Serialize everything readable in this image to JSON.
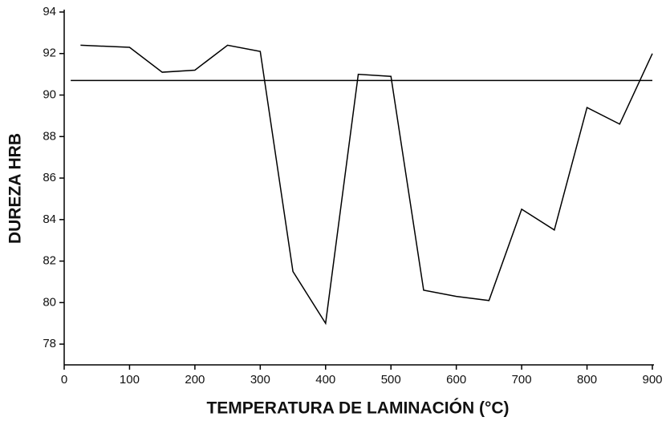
{
  "chart_data": {
    "type": "line",
    "x_label": "TEMPERATURA DE LAMINACIÓN (°C)",
    "y_label": "DUREZA HRB",
    "x": [
      25,
      100,
      150,
      200,
      250,
      300,
      350,
      400,
      450,
      500,
      550,
      600,
      650,
      700,
      750,
      800,
      850,
      900
    ],
    "values": [
      92.4,
      92.3,
      91.1,
      91.2,
      92.4,
      92.1,
      81.5,
      79.0,
      91.0,
      90.9,
      80.6,
      80.3,
      80.1,
      84.5,
      83.5,
      89.4,
      88.6,
      92.0
    ],
    "color": "#000000",
    "hline": {
      "y": 90.7,
      "x": [
        10,
        900
      ]
    },
    "xlim": [
      0,
      900
    ],
    "xticks": [
      0,
      100,
      200,
      300,
      400,
      500,
      600,
      700,
      800,
      900
    ],
    "ylim": [
      77,
      94
    ],
    "yticks": [
      78,
      80,
      82,
      84,
      86,
      88,
      90,
      92,
      94
    ],
    "grid": false
  }
}
